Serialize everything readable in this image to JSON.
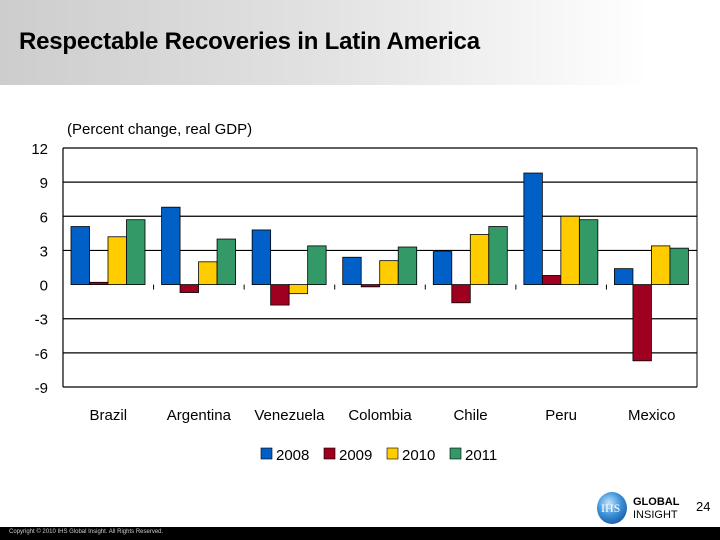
{
  "slide": {
    "title": "Respectable Recoveries in Latin America",
    "page_number": "24",
    "copyright": "Copyright © 2010 IHS Global Insight. All Rights Reserved.",
    "logo": {
      "mark": "IHS",
      "line1": "GLOBAL",
      "line2": "INSIGHT"
    }
  },
  "chart_data": {
    "type": "bar",
    "subtitle": "(Percent change, real GDP)",
    "categories": [
      "Brazil",
      "Argentina",
      "Venezuela",
      "Colombia",
      "Chile",
      "Peru",
      "Mexico"
    ],
    "series": [
      {
        "name": "2008",
        "color": "#0060c8",
        "values": [
          5.1,
          6.8,
          4.8,
          2.4,
          2.9,
          9.8,
          1.4
        ]
      },
      {
        "name": "2009",
        "color": "#a00020",
        "values": [
          0.2,
          -0.7,
          -1.8,
          -0.2,
          -1.6,
          0.8,
          -6.7
        ]
      },
      {
        "name": "2010",
        "color": "#ffcc00",
        "values": [
          4.2,
          2.0,
          -0.8,
          2.1,
          4.4,
          6.0,
          3.4
        ]
      },
      {
        "name": "2011",
        "color": "#339966",
        "values": [
          5.7,
          4.0,
          3.4,
          3.3,
          5.1,
          5.7,
          3.2
        ]
      }
    ],
    "ylim": [
      -9,
      12
    ],
    "yticks": [
      12,
      9,
      6,
      3,
      0,
      -3,
      -6,
      -9
    ],
    "grid": true,
    "legend": "bottom"
  }
}
